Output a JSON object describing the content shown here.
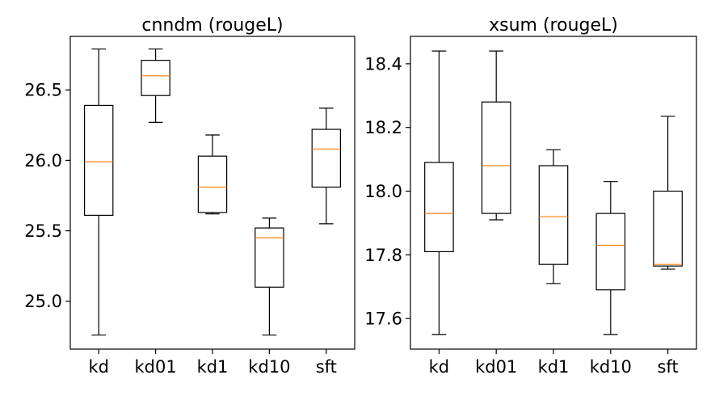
{
  "chart_data": [
    {
      "type": "box",
      "title": "cnndm (rougeL)",
      "xlabel": "",
      "ylabel": "",
      "categories": [
        "kd",
        "kd01",
        "kd1",
        "kd10",
        "sft"
      ],
      "ylim": [
        24.66,
        26.88
      ],
      "yticks": [
        25.0,
        25.5,
        26.0,
        26.5
      ],
      "ytick_labels": [
        "25.0",
        "25.5",
        "26.0",
        "26.5"
      ],
      "grid": false,
      "boxes": [
        {
          "min": 24.76,
          "q1": 25.61,
          "median": 25.99,
          "q3": 26.39,
          "max": 26.79
        },
        {
          "min": 26.27,
          "q1": 26.46,
          "median": 26.6,
          "q3": 26.71,
          "max": 26.79
        },
        {
          "min": 25.62,
          "q1": 25.63,
          "median": 25.81,
          "q3": 26.03,
          "max": 26.18
        },
        {
          "min": 24.76,
          "q1": 25.1,
          "median": 25.45,
          "q3": 25.52,
          "max": 25.59
        },
        {
          "min": 25.55,
          "q1": 25.81,
          "median": 26.08,
          "q3": 26.22,
          "max": 26.37
        }
      ]
    },
    {
      "type": "box",
      "title": "xsum (rougeL)",
      "xlabel": "",
      "ylabel": "",
      "categories": [
        "kd",
        "kd01",
        "kd1",
        "kd10",
        "sft"
      ],
      "ylim": [
        17.504,
        18.486
      ],
      "yticks": [
        17.6,
        17.8,
        18.0,
        18.2,
        18.4
      ],
      "ytick_labels": [
        "17.6",
        "17.8",
        "18.0",
        "18.2",
        "18.4"
      ],
      "grid": false,
      "boxes": [
        {
          "min": 17.55,
          "q1": 17.81,
          "median": 17.93,
          "q3": 18.09,
          "max": 18.44
        },
        {
          "min": 17.91,
          "q1": 17.93,
          "median": 18.08,
          "q3": 18.28,
          "max": 18.44
        },
        {
          "min": 17.71,
          "q1": 17.77,
          "median": 17.92,
          "q3": 18.08,
          "max": 18.13
        },
        {
          "min": 17.55,
          "q1": 17.69,
          "median": 17.83,
          "q3": 17.93,
          "max": 18.03
        },
        {
          "min": 17.755,
          "q1": 17.765,
          "median": 17.77,
          "q3": 18.0,
          "max": 18.235
        }
      ]
    }
  ],
  "colors": {
    "box": "#000000",
    "median": "#ff7f0e",
    "background": "#ffffff"
  }
}
